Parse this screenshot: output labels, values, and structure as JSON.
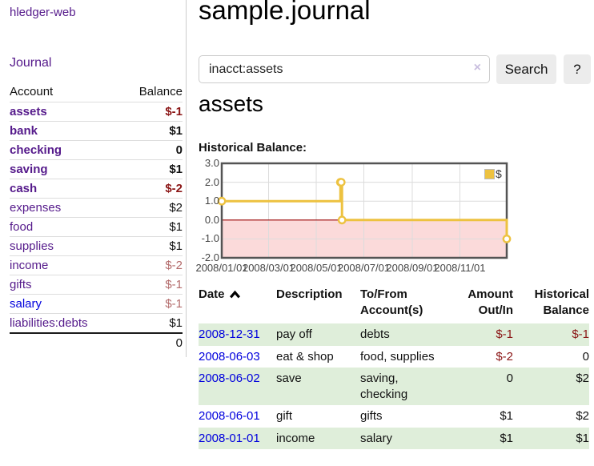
{
  "app": {
    "brand": "hledger-web",
    "nav_journal": "Journal"
  },
  "colors": {
    "link_purple": "#551a8b",
    "link_blue": "#0000dd",
    "negative": "#8b1616",
    "negative_muted": "#b36b6b",
    "row_green": "#dfeeda",
    "chart_line": "#edc240",
    "chart_negative_bg": "#fbdada",
    "zero_line": "#990000",
    "grid": "#dcdcdc",
    "chart_border": "#545454"
  },
  "sidebar": {
    "accounts_header": {
      "account": "Account",
      "balance": "Balance"
    },
    "rows": [
      {
        "label": "assets",
        "level": 1,
        "bold": true,
        "link": "purple",
        "balance": "$-1",
        "tone": "neg"
      },
      {
        "label": "bank",
        "level": 2,
        "bold": true,
        "link": "purple",
        "balance": "$1",
        "tone": "pos"
      },
      {
        "label": "checking",
        "level": 3,
        "bold": true,
        "link": "purple",
        "balance": "0",
        "tone": "pos"
      },
      {
        "label": "saving",
        "level": 3,
        "bold": true,
        "link": "purple",
        "balance": "$1",
        "tone": "pos"
      },
      {
        "label": "cash",
        "level": 2,
        "bold": true,
        "link": "purple",
        "balance": "$-2",
        "tone": "neg"
      },
      {
        "label": "expenses",
        "level": 1,
        "bold": false,
        "link": "purple",
        "balance": "$2",
        "tone": "pos"
      },
      {
        "label": "food",
        "level": 2,
        "bold": false,
        "link": "purple",
        "balance": "$1",
        "tone": "pos"
      },
      {
        "label": "supplies",
        "level": 2,
        "bold": false,
        "link": "purple",
        "balance": "$1",
        "tone": "pos"
      },
      {
        "label": "income",
        "level": 1,
        "bold": false,
        "link": "purple",
        "balance": "$-2",
        "tone": "neg-muted"
      },
      {
        "label": "gifts",
        "level": 2,
        "bold": false,
        "link": "purple",
        "balance": "$-1",
        "tone": "neg-muted"
      },
      {
        "label": "salary",
        "level": 2,
        "bold": false,
        "link": "blue",
        "balance": "$-1",
        "tone": "neg-muted"
      },
      {
        "label": "liabilities:debts",
        "level": 1,
        "bold": false,
        "link": "purple",
        "balance": "$1",
        "tone": "pos"
      }
    ],
    "total": "0"
  },
  "main": {
    "title": "sample.journal",
    "search": {
      "value": "inacct:assets",
      "clear_icon": "×",
      "button": "Search",
      "help_button": "?"
    },
    "section_heading": "assets",
    "chart_label": "Historical Balance:"
  },
  "chart_data": {
    "type": "line",
    "title": "Historical Balance:",
    "series": [
      {
        "name": "$",
        "steps": true,
        "points": [
          [
            "2008-01-01",
            1
          ],
          [
            "2008-06-01",
            2
          ],
          [
            "2008-06-02",
            2
          ],
          [
            "2008-06-03",
            0
          ],
          [
            "2008-12-31",
            -1
          ]
        ]
      }
    ],
    "x_ticks": [
      "2008/01/01",
      "2008/03/01",
      "2008/05/01",
      "2008/07/01",
      "2008/09/01",
      "2008/11/01"
    ],
    "y_ticks": [
      3.0,
      2.0,
      1.0,
      0.0,
      -1.0,
      -2.0
    ],
    "xlim": [
      "2008-01-01",
      "2008-12-31"
    ],
    "ylim": [
      -2,
      3
    ],
    "grid": true,
    "legend_position": "top-right",
    "negative_region_shaded": true
  },
  "register": {
    "columns": [
      {
        "label": "Date",
        "sorted_asc": true
      },
      {
        "label": "Description"
      },
      {
        "label": "To/From Account(s)"
      },
      {
        "label": "Amount Out/In",
        "align": "right"
      },
      {
        "label": "Historical Balance",
        "align": "right"
      }
    ],
    "rows": [
      {
        "date": "2008-12-31",
        "description": "pay off",
        "accounts": "debts",
        "amount": "$-1",
        "amount_negative": true,
        "balance": "$-1",
        "balance_negative": true
      },
      {
        "date": "2008-06-03",
        "description": "eat & shop",
        "accounts": "food, supplies",
        "amount": "$-2",
        "amount_negative": true,
        "balance": "0",
        "balance_negative": false
      },
      {
        "date": "2008-06-02",
        "description": "save",
        "accounts": "saving, checking",
        "amount": "0",
        "amount_negative": false,
        "balance": "$2",
        "balance_negative": false
      },
      {
        "date": "2008-06-01",
        "description": "gift",
        "accounts": "gifts",
        "amount": "$1",
        "amount_negative": false,
        "balance": "$2",
        "balance_negative": false
      },
      {
        "date": "2008-01-01",
        "description": "income",
        "accounts": "salary",
        "amount": "$1",
        "amount_negative": false,
        "balance": "$1",
        "balance_negative": false
      }
    ]
  }
}
